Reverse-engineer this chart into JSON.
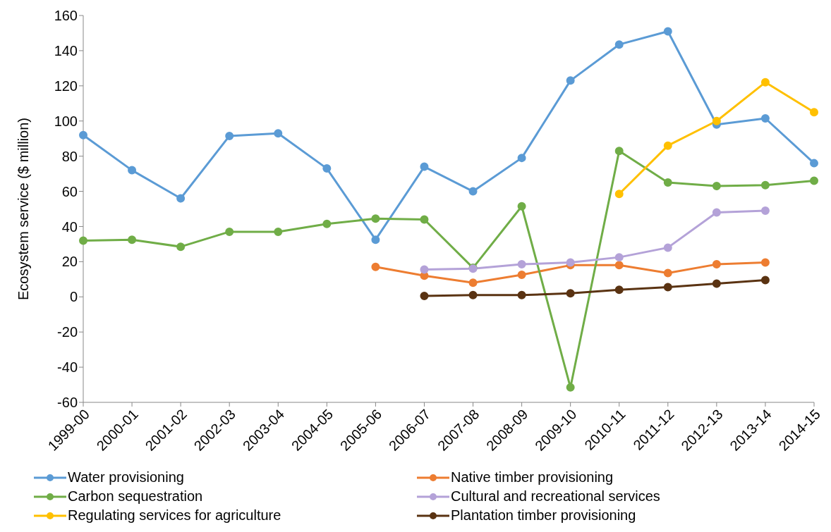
{
  "chart_data": {
    "type": "line",
    "ylabel": "Ecosystem service ($ million)",
    "categories": [
      "1999-00",
      "2000-01",
      "2001-02",
      "2002-03",
      "2003-04",
      "2004-05",
      "2005-06",
      "2006-07",
      "2007-08",
      "2008-09",
      "2009-10",
      "2010-11",
      "2011-12",
      "2012-13",
      "2013-14",
      "2014-15"
    ],
    "series": [
      {
        "name": "Water provisioning",
        "color": "#5b9bd5",
        "values": [
          92,
          72,
          56,
          91.5,
          93,
          73,
          32.5,
          74,
          60,
          79,
          123,
          143.5,
          151,
          98,
          101.5,
          76
        ]
      },
      {
        "name": "Native timber provisioning",
        "color": "#ed7d31",
        "values": [
          null,
          null,
          null,
          null,
          null,
          null,
          17,
          12,
          8,
          12.5,
          18,
          18,
          13.5,
          18.5,
          19.5,
          null
        ]
      },
      {
        "name": "Carbon sequestration",
        "color": "#70ad47",
        "values": [
          32,
          32.5,
          28.5,
          37,
          37,
          41.5,
          44.5,
          44,
          16.5,
          51.5,
          -51.5,
          83,
          65,
          63,
          63.5,
          66
        ]
      },
      {
        "name": "Cultural and recreational services",
        "color": "#b4a2d8",
        "values": [
          null,
          null,
          null,
          null,
          null,
          null,
          null,
          15.5,
          16,
          18.5,
          19.5,
          22.5,
          28,
          48,
          49,
          null
        ]
      },
      {
        "name": "Regulating services for agriculture",
        "color": "#ffc000",
        "values": [
          null,
          null,
          null,
          null,
          null,
          null,
          null,
          null,
          null,
          null,
          null,
          58.5,
          86,
          100,
          122,
          105
        ]
      },
      {
        "name": "Plantation timber provisioning",
        "color": "#5a3312",
        "values": [
          null,
          null,
          null,
          null,
          null,
          null,
          null,
          0.5,
          1,
          1,
          2,
          4,
          5.5,
          7.5,
          9.5,
          null
        ]
      }
    ],
    "ylim": [
      -60,
      160
    ],
    "yticks": [
      -60,
      -40,
      -20,
      0,
      20,
      40,
      60,
      80,
      100,
      120,
      140,
      160
    ],
    "legend": "bottom",
    "marker": "circle",
    "line_style": "solid"
  }
}
